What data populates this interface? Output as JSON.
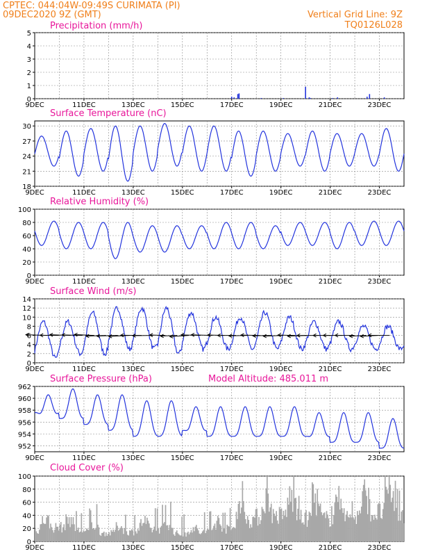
{
  "header": {
    "line1": "CPTEC:   044:04W-09:49S   CURIMATA (PI)",
    "line2": "09DEC2020 9Z (GMT)",
    "grid_note": "Vertical Grid Line: 9Z",
    "code": "TQ0126L028"
  },
  "x_ticks": [
    "9DEC",
    "11DEC",
    "13DEC",
    "15DEC",
    "17DEC",
    "19DEC",
    "21DEC",
    "23DEC"
  ],
  "model_altitude": "Model Altitude: 485.011 m",
  "colors": {
    "line": "#2233dd",
    "bar": "#2233dd",
    "cloud": "#a8a8a8",
    "header": "#f07f1a",
    "title": "#e8169a",
    "grid": "#888888"
  },
  "chart_data": [
    {
      "type": "bar",
      "title": "Precipitation (mm/h)",
      "x_unit": "days since 9DEC 9Z",
      "ylim": [
        0,
        5
      ],
      "yticks": [
        0,
        1,
        2,
        3,
        4,
        5
      ],
      "grid": true,
      "x": [
        8.0,
        8.1,
        8.25,
        8.3,
        9.2,
        10.1,
        11.0,
        11.15,
        11.2,
        12.1,
        12.3,
        13.5,
        13.6,
        14.2
      ],
      "values": [
        0.15,
        0.1,
        0.35,
        0.4,
        0.05,
        0.05,
        0.9,
        0.1,
        0.05,
        0.05,
        0.1,
        0.15,
        0.35,
        0.1
      ]
    },
    {
      "type": "line",
      "title": "Surface Temperature (nC)",
      "ylim": [
        18,
        31
      ],
      "yticks": [
        18,
        21,
        24,
        27,
        30
      ],
      "grid": true,
      "min": [
        22,
        20,
        21,
        19,
        21,
        22,
        21,
        21,
        20,
        21,
        22,
        21,
        22,
        22,
        21
      ],
      "max": [
        28,
        29,
        29.5,
        30,
        30,
        30.5,
        30,
        30,
        29,
        29,
        28.5,
        29,
        28.5,
        28.5,
        29.5
      ]
    },
    {
      "type": "line",
      "title": "Relative Humidity (%)",
      "ylim": [
        0,
        100
      ],
      "yticks": [
        0,
        20,
        40,
        60,
        80,
        100
      ],
      "grid": true,
      "min": [
        45,
        40,
        40,
        25,
        35,
        35,
        40,
        40,
        40,
        40,
        45,
        45,
        40,
        45,
        45
      ],
      "max": [
        82,
        80,
        80,
        80,
        75,
        75,
        75,
        80,
        80,
        75,
        80,
        80,
        80,
        82,
        82
      ]
    },
    {
      "type": "line",
      "title": "Surface Wind (m/s)",
      "ylim": [
        0,
        14
      ],
      "yticks": [
        0,
        2,
        4,
        6,
        8,
        10,
        12,
        14
      ],
      "grid": true,
      "min": [
        1,
        2,
        2,
        3,
        3,
        2,
        3,
        3,
        3,
        3,
        3,
        3,
        3,
        3,
        3
      ],
      "max": [
        9,
        9,
        11,
        12,
        12,
        12,
        11,
        10,
        10,
        11,
        10,
        9,
        9,
        8,
        8
      ],
      "vectors": "north-easterly trade wind, arrows pointing west-southwest"
    },
    {
      "type": "line",
      "title": "Surface Pressure (hPa)",
      "ylim": [
        951,
        962
      ],
      "yticks": [
        952,
        954,
        956,
        958,
        960,
        962
      ],
      "grid": true,
      "min": [
        957,
        956,
        955,
        954,
        953,
        953,
        954,
        953,
        953,
        953,
        953,
        953,
        952,
        952,
        951
      ],
      "max": [
        960,
        961,
        960,
        960,
        959,
        959,
        958,
        958,
        958,
        958,
        958,
        957,
        957,
        957,
        956
      ]
    },
    {
      "type": "bar",
      "title": "Cloud Cover (%)",
      "ylim": [
        0,
        100
      ],
      "yticks": [
        0,
        20,
        40,
        60,
        80,
        100
      ],
      "grid": true,
      "profile": [
        35,
        45,
        30,
        25,
        30,
        40,
        20,
        30,
        40,
        75,
        80,
        70,
        70,
        75,
        90
      ]
    }
  ]
}
